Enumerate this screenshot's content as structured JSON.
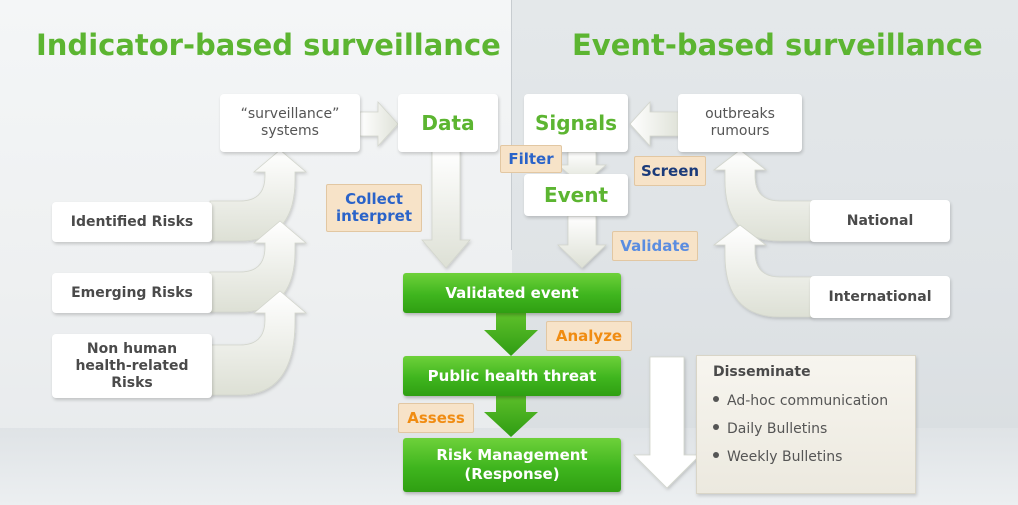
{
  "headings": {
    "indicator": "Indicator-based surveillance",
    "event": "Event-based surveillance"
  },
  "indicator_sources": {
    "identified": "Identified Risks",
    "emerging": "Emerging Risks",
    "non_human_lines": [
      "Non human",
      "health-related",
      "Risks"
    ]
  },
  "surveillance_systems_lines": [
    "“surveillance”",
    "systems"
  ],
  "data_label": "Data",
  "signals_label": "Signals",
  "event_label": "Event",
  "outbreaks_lines": [
    "outbreaks",
    "rumours"
  ],
  "event_sources": {
    "national": "National",
    "international": "International"
  },
  "tags": {
    "filter": "Filter",
    "screen": "Screen",
    "collect_lines": [
      "Collect",
      "interpret"
    ],
    "validate": "Validate",
    "analyze": "Analyze",
    "assess": "Assess"
  },
  "flow": {
    "validated_event": "Validated event",
    "public_health_threat": "Public health threat",
    "risk_management_lines": [
      "Risk Management",
      "(Response)"
    ]
  },
  "disseminate": {
    "title": "Disseminate",
    "items": [
      "Ad-hoc communication",
      "Daily Bulletins",
      "Weekly Bulletins"
    ]
  },
  "colors": {
    "heading_green": "#5cb531",
    "flow_green": "#3fb51e",
    "tag_fill": "#f7e3c8",
    "tag_blue": "#2a63c9",
    "tag_navy": "#1b3b7a",
    "tag_orange": "#f08c12"
  }
}
